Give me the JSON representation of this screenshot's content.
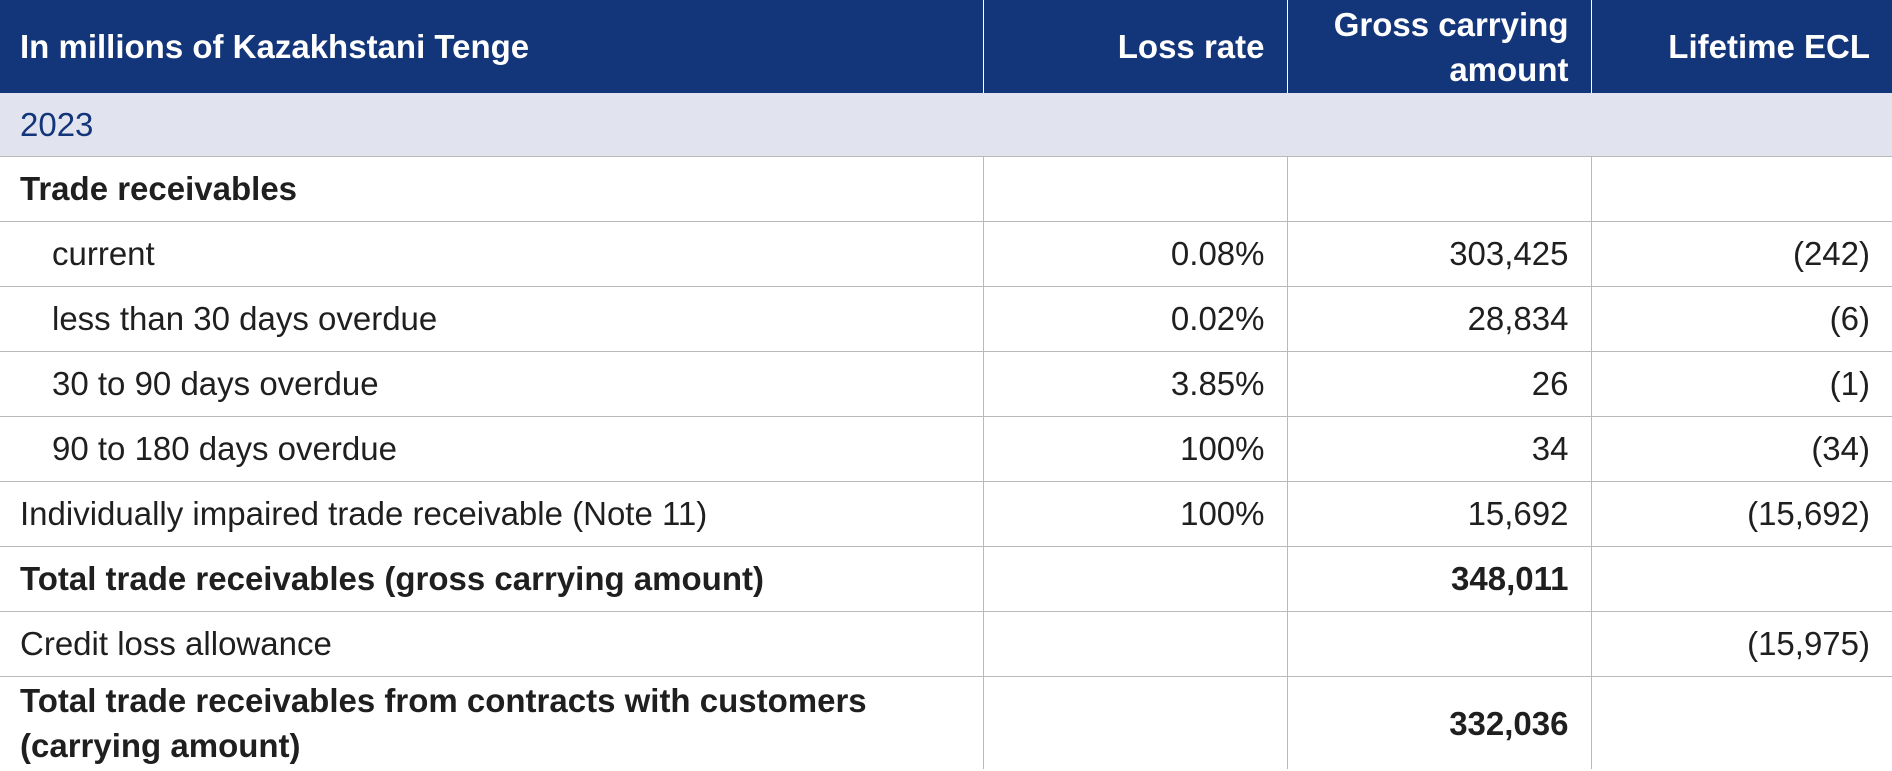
{
  "header": {
    "col1": "In millions of Kazakhstani Tenge",
    "col2": "Loss rate",
    "col3_line1": "Gross carrying",
    "col3_line2": "amount",
    "col4": "Lifetime ECL"
  },
  "year_label": "2023",
  "section_label": "Trade receivables",
  "rows": [
    {
      "label": "current",
      "loss_rate": "0.08%",
      "gross": "303,425",
      "ecl": "(242)"
    },
    {
      "label": "less than 30 days overdue",
      "loss_rate": "0.02%",
      "gross": "28,834",
      "ecl": "(6)"
    },
    {
      "label": "30 to 90 days overdue",
      "loss_rate": "3.85%",
      "gross": "26",
      "ecl": "(1)"
    },
    {
      "label": "90 to 180 days overdue",
      "loss_rate": "100%",
      "gross": "34",
      "ecl": "(34)"
    },
    {
      "label": "Individually impaired trade receivable (Note 11)",
      "loss_rate": "100%",
      "gross": "15,692",
      "ecl": "(15,692)"
    }
  ],
  "total_gross": {
    "label": "Total trade receivables (gross carrying amount)",
    "gross": "348,011"
  },
  "allowance": {
    "label": "Credit loss allowance",
    "ecl": "(15,975)"
  },
  "total_net": {
    "label_line1": "Total trade receivables from contracts with customers",
    "label_line2": "(carrying amount)",
    "gross": "332,036"
  }
}
